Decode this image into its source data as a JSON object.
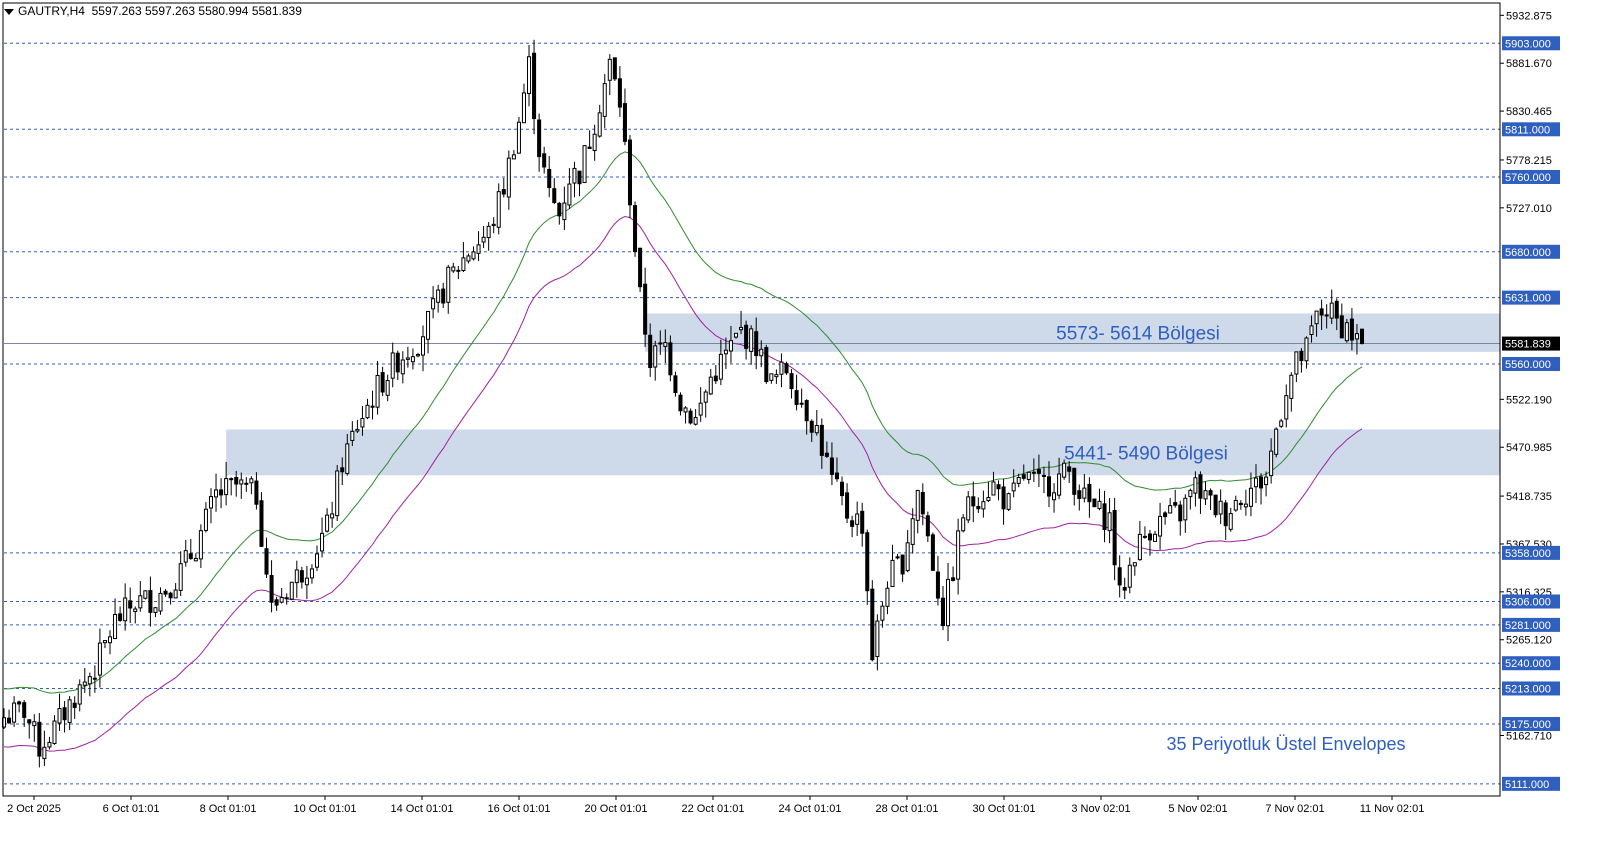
{
  "header": {
    "symbol": "GAUTRY,H4",
    "open": "5597.263",
    "high": "5597.263",
    "low": "5580.994",
    "close": "5581.839"
  },
  "colors": {
    "background": "#ffffff",
    "candle_body_up": "#ffffff",
    "candle_body_down": "#000000",
    "candle_outline": "#000000",
    "level_line": "#2f5fbf",
    "level_label_bg": "#2f5fbf",
    "zone_fill": "#c9d6e8",
    "zone_text": "#2f5fbf",
    "envelope_upper": "#2e8b2e",
    "envelope_lower": "#a020a0",
    "current_price_bg": "#000000",
    "annotation_text": "#2f5fbf"
  },
  "chart_data": {
    "type": "candlestick",
    "symbol": "GAUTRY",
    "timeframe": "H4",
    "current_price": "5581.839",
    "grid": false,
    "ylim": [
      5098,
      5945
    ],
    "y_ticks": [
      "5932.875",
      "5881.670",
      "5830.465",
      "5778.215",
      "5727.010",
      "5522.190",
      "5470.985",
      "5418.735",
      "5367.530",
      "5316.325",
      "5265.120",
      "5162.710"
    ],
    "x_ticks": [
      "2 Oct 2025",
      "6 Oct 01:01",
      "8 Oct 01:01",
      "10 Oct 01:01",
      "14 Oct 01:01",
      "16 Oct 01:01",
      "20 Oct 01:01",
      "22 Oct 01:01",
      "24 Oct 01:01",
      "28 Oct 01:01",
      "30 Oct 01:01",
      "3 Nov 02:01",
      "5 Nov 02:01",
      "7 Nov 02:01",
      "11 Nov 02:01"
    ],
    "levels": [
      "5903.000",
      "5811.000",
      "5760.000",
      "5680.000",
      "5631.000",
      "5560.000",
      "5358.000",
      "5306.000",
      "5281.000",
      "5240.000",
      "5213.000",
      "5175.000",
      "5111.000"
    ],
    "zones": [
      {
        "label": "5573- 5614 Bölgesi",
        "low": 5573,
        "high": 5614,
        "start_bar": 127
      },
      {
        "label": "5441- 5490 Bölgesi",
        "low": 5441,
        "high": 5490,
        "start_bar": 44
      }
    ],
    "annotation": "35 Periyotluk Üstel Envelopes",
    "envelope_period": 35,
    "close_waypoints": [
      [
        0,
        5182
      ],
      [
        4,
        5190
      ],
      [
        7,
        5150
      ],
      [
        10,
        5170
      ],
      [
        14,
        5205
      ],
      [
        18,
        5235
      ],
      [
        22,
        5285
      ],
      [
        26,
        5305
      ],
      [
        30,
        5310
      ],
      [
        34,
        5330
      ],
      [
        38,
        5365
      ],
      [
        42,
        5420
      ],
      [
        46,
        5430
      ],
      [
        50,
        5420
      ],
      [
        53,
        5298
      ],
      [
        56,
        5320
      ],
      [
        60,
        5345
      ],
      [
        64,
        5385
      ],
      [
        67,
        5455
      ],
      [
        70,
        5495
      ],
      [
        74,
        5535
      ],
      [
        78,
        5565
      ],
      [
        82,
        5585
      ],
      [
        85,
        5615
      ],
      [
        88,
        5650
      ],
      [
        92,
        5680
      ],
      [
        96,
        5700
      ],
      [
        99,
        5750
      ],
      [
        102,
        5820
      ],
      [
        104,
        5880
      ],
      [
        106,
        5790
      ],
      [
        108,
        5740
      ],
      [
        110,
        5720
      ],
      [
        112,
        5760
      ],
      [
        114,
        5765
      ],
      [
        116,
        5800
      ],
      [
        118,
        5840
      ],
      [
        120,
        5880
      ],
      [
        122,
        5840
      ],
      [
        124,
        5740
      ],
      [
        126,
        5630
      ],
      [
        128,
        5565
      ],
      [
        131,
        5580
      ],
      [
        134,
        5520
      ],
      [
        137,
        5500
      ],
      [
        140,
        5545
      ],
      [
        143,
        5570
      ],
      [
        146,
        5595
      ],
      [
        149,
        5580
      ],
      [
        152,
        5540
      ],
      [
        155,
        5555
      ],
      [
        158,
        5520
      ],
      [
        161,
        5490
      ],
      [
        164,
        5435
      ],
      [
        167,
        5400
      ],
      [
        170,
        5390
      ],
      [
        172,
        5250
      ],
      [
        175,
        5330
      ],
      [
        178,
        5350
      ],
      [
        181,
        5425
      ],
      [
        183,
        5375
      ],
      [
        186,
        5290
      ],
      [
        188,
        5340
      ],
      [
        190,
        5400
      ],
      [
        193,
        5420
      ],
      [
        196,
        5430
      ],
      [
        199,
        5410
      ],
      [
        202,
        5440
      ],
      [
        205,
        5430
      ],
      [
        208,
        5435
      ],
      [
        211,
        5445
      ],
      [
        214,
        5415
      ],
      [
        217,
        5400
      ],
      [
        219,
        5395
      ],
      [
        221,
        5310
      ],
      [
        224,
        5360
      ],
      [
        227,
        5385
      ],
      [
        230,
        5395
      ],
      [
        233,
        5400
      ],
      [
        236,
        5430
      ],
      [
        239,
        5410
      ],
      [
        242,
        5400
      ],
      [
        245,
        5420
      ],
      [
        248,
        5430
      ],
      [
        250,
        5440
      ],
      [
        252,
        5490
      ],
      [
        254,
        5535
      ],
      [
        256,
        5560
      ],
      [
        258,
        5575
      ],
      [
        260,
        5610
      ],
      [
        262,
        5620
      ],
      [
        264,
        5605
      ],
      [
        266,
        5600
      ],
      [
        268,
        5585
      ],
      [
        269,
        5582
      ]
    ]
  }
}
